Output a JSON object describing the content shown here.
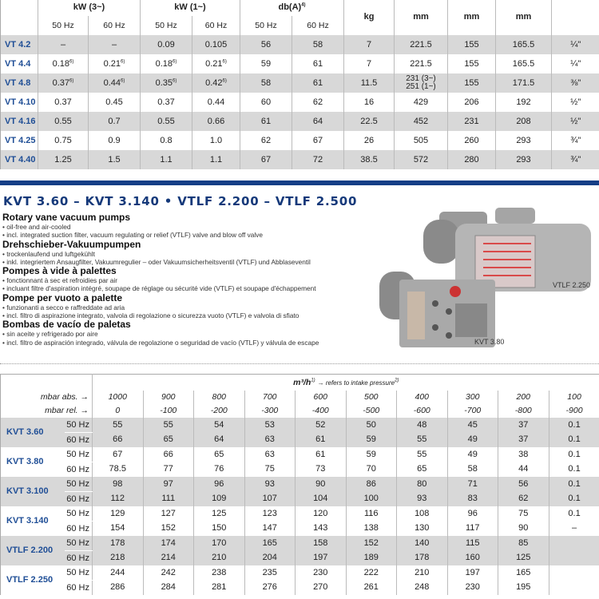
{
  "top_table": {
    "groups": [
      "kW (3~)",
      "kW (1~)",
      "db(A)"
    ],
    "db_note": "4)",
    "weight_unit": "kg",
    "dim_unit": "mm",
    "hz": [
      "50 Hz",
      "60 Hz"
    ],
    "rows": [
      {
        "model": "VT 4.2",
        "kw3_50": "–",
        "kw3_60": "–",
        "kw1_50": "0.09",
        "kw1_60": "0.105",
        "db50": "56",
        "db60": "58",
        "kg": "7",
        "l": "221.5",
        "w": "155",
        "h": "165.5",
        "conn": "¼\""
      },
      {
        "model": "VT 4.4",
        "kw3_50": "0.18",
        "kw3_60": "0.21",
        "kw1_50": "0.18",
        "kw1_60": "0.21",
        "db50": "59",
        "db60": "61",
        "kg": "7",
        "l": "221.5",
        "w": "155",
        "h": "165.5",
        "conn": "¼\"",
        "note": "6)"
      },
      {
        "model": "VT 4.8",
        "kw3_50": "0.37",
        "kw3_60": "0.44",
        "kw1_50": "0.35",
        "kw1_60": "0.42",
        "db50": "58",
        "db60": "61",
        "kg": "11.5",
        "l": "231 (3~)",
        "l2": "251 (1~)",
        "w": "155",
        "h": "171.5",
        "conn": "⅜\"",
        "note": "6)"
      },
      {
        "model": "VT 4.10",
        "kw3_50": "0.37",
        "kw3_60": "0.45",
        "kw1_50": "0.37",
        "kw1_60": "0.44",
        "db50": "60",
        "db60": "62",
        "kg": "16",
        "l": "429",
        "w": "206",
        "h": "192",
        "conn": "½\""
      },
      {
        "model": "VT 4.16",
        "kw3_50": "0.55",
        "kw3_60": "0.7",
        "kw1_50": "0.55",
        "kw1_60": "0.66",
        "db50": "61",
        "db60": "64",
        "kg": "22.5",
        "l": "452",
        "w": "231",
        "h": "208",
        "conn": "½\""
      },
      {
        "model": "VT 4.25",
        "kw3_50": "0.75",
        "kw3_60": "0.9",
        "kw1_50": "0.8",
        "kw1_60": "1.0",
        "db50": "62",
        "db60": "67",
        "kg": "26",
        "l": "505",
        "w": "260",
        "h": "293",
        "conn": "¾\""
      },
      {
        "model": "VT 4.40",
        "kw3_50": "1.25",
        "kw3_60": "1.5",
        "kw1_50": "1.1",
        "kw1_60": "1.1",
        "db50": "67",
        "db60": "72",
        "kg": "38.5",
        "l": "572",
        "w": "280",
        "h": "293",
        "conn": "¾\""
      }
    ]
  },
  "section": {
    "title": "KVT 3.60 – KVT 3.140  •  VTLF 2.200 – VTLF 2.500",
    "langs": [
      {
        "heading": "Rotary vane vacuum pumps",
        "b1": "• oil-free and air-cooled",
        "b2": "• incl. integrated suction filter, vacuum regulating or relief (VTLF) valve and blow off valve"
      },
      {
        "heading": "Drehschieber-Vakuumpumpen",
        "b1": "• trockenlaufend und luftgekühlt",
        "b2": "• inkl. integriertem Ansaugfilter, Vakuumregulier – oder Vakuumsicherheitsventil (VTLF) und Abblaseventil"
      },
      {
        "heading": "Pompes à vide à palettes",
        "b1": "• fonctionnant à sec et refroidies par air",
        "b2": "• incluant filtre d'aspiration intégré, soupape de réglage ou sécurité vide (VTLF) et soupape d'échappement"
      },
      {
        "heading": "Pompe per vuoto a palette",
        "b1": "• funzionanti a secco e raffreddate ad aria",
        "b2": "• incl. filtro di aspirazione integrato, valvola di regolazione o sicurezza vuoto (VTLF) e valvola di sfiato"
      },
      {
        "heading": "Bombas de vacío de paletas",
        "b1": "• sin aceite y refrigerado por aire",
        "b2": "• incl. filtro de aspiración integrado, válvula de regolazione o seguridad de vacío (VTLF) y válvula de escape"
      }
    ],
    "captions": {
      "big": "VTLF 2.250",
      "small": "KVT 3.80"
    }
  },
  "flow_table": {
    "unit": "m³/h",
    "unit_note": "1)",
    "refers": "→ refers to intake pressure",
    "refers_note": "2)",
    "abs_label": "mbar abs. →",
    "rel_label": "mbar rel. →",
    "abs": [
      "1000",
      "900",
      "800",
      "700",
      "600",
      "500",
      "400",
      "300",
      "200",
      "100"
    ],
    "rel": [
      "0",
      "-100",
      "-200",
      "-300",
      "-400",
      "-500",
      "-600",
      "-700",
      "-800",
      "-900"
    ],
    "models": [
      {
        "model": "KVT 3.60",
        "r50": [
          "55",
          "55",
          "54",
          "53",
          "52",
          "50",
          "48",
          "45",
          "37",
          "0.1"
        ],
        "r60": [
          "66",
          "65",
          "64",
          "63",
          "61",
          "59",
          "55",
          "49",
          "37",
          "0.1"
        ]
      },
      {
        "model": "KVT 3.80",
        "r50": [
          "67",
          "66",
          "65",
          "63",
          "61",
          "59",
          "55",
          "49",
          "38",
          "0.1"
        ],
        "r60": [
          "78.5",
          "77",
          "76",
          "75",
          "73",
          "70",
          "65",
          "58",
          "44",
          "0.1"
        ]
      },
      {
        "model": "KVT 3.100",
        "r50": [
          "98",
          "97",
          "96",
          "93",
          "90",
          "86",
          "80",
          "71",
          "56",
          "0.1"
        ],
        "r60": [
          "112",
          "111",
          "109",
          "107",
          "104",
          "100",
          "93",
          "83",
          "62",
          "0.1"
        ]
      },
      {
        "model": "KVT 3.140",
        "r50": [
          "129",
          "127",
          "125",
          "123",
          "120",
          "116",
          "108",
          "96",
          "75",
          "0.1"
        ],
        "r60": [
          "154",
          "152",
          "150",
          "147",
          "143",
          "138",
          "130",
          "117",
          "90",
          "–"
        ]
      },
      {
        "model": "VTLF 2.200",
        "r50": [
          "178",
          "174",
          "170",
          "165",
          "158",
          "152",
          "140",
          "115",
          "85",
          ""
        ],
        "r60": [
          "218",
          "214",
          "210",
          "204",
          "197",
          "189",
          "178",
          "160",
          "125",
          ""
        ]
      },
      {
        "model": "VTLF 2.250",
        "r50": [
          "244",
          "242",
          "238",
          "235",
          "230",
          "222",
          "210",
          "197",
          "165",
          ""
        ],
        "r60": [
          "286",
          "284",
          "281",
          "276",
          "270",
          "261",
          "248",
          "230",
          "195",
          ""
        ]
      }
    ]
  },
  "colors": {
    "brand_blue": "#153e86",
    "model_blue": "#1f4e96",
    "row_gray": "#d8d8d8"
  }
}
